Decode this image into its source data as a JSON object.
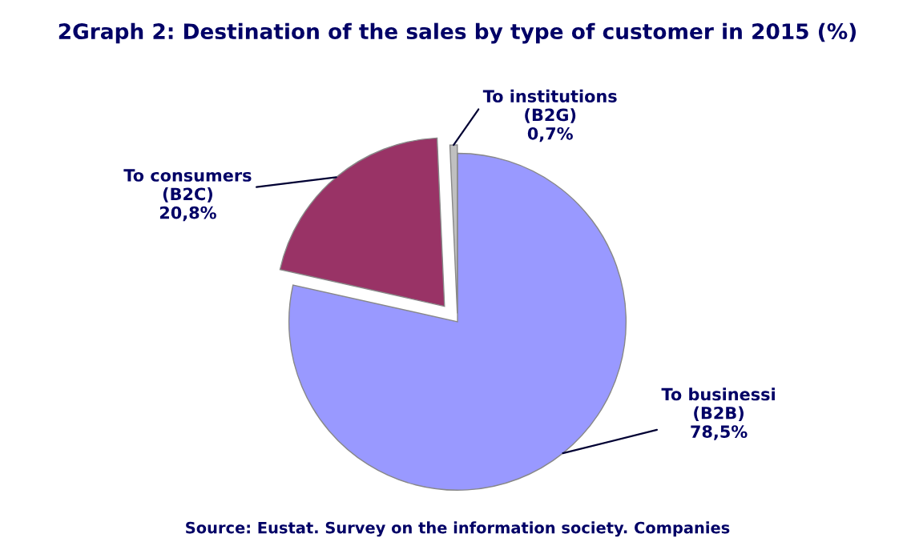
{
  "chart_data": {
    "type": "pie",
    "title": "2Graph 2: Destination of the sales by type of customer in 2015 (%)",
    "categories": [
      "To businessi\n(B2B)",
      "To consumers\n(B2C)",
      "To institutions\n(B2G)"
    ],
    "values": [
      78.5,
      20.8,
      0.7
    ],
    "value_labels": [
      "78,5%",
      "20,8%",
      "0,7%"
    ],
    "colors": [
      "#9999ff",
      "#993366",
      "#c0c0c0"
    ],
    "annotations": [
      "Source: Eustat. Survey on the information society. Companies"
    ],
    "legend": false
  }
}
